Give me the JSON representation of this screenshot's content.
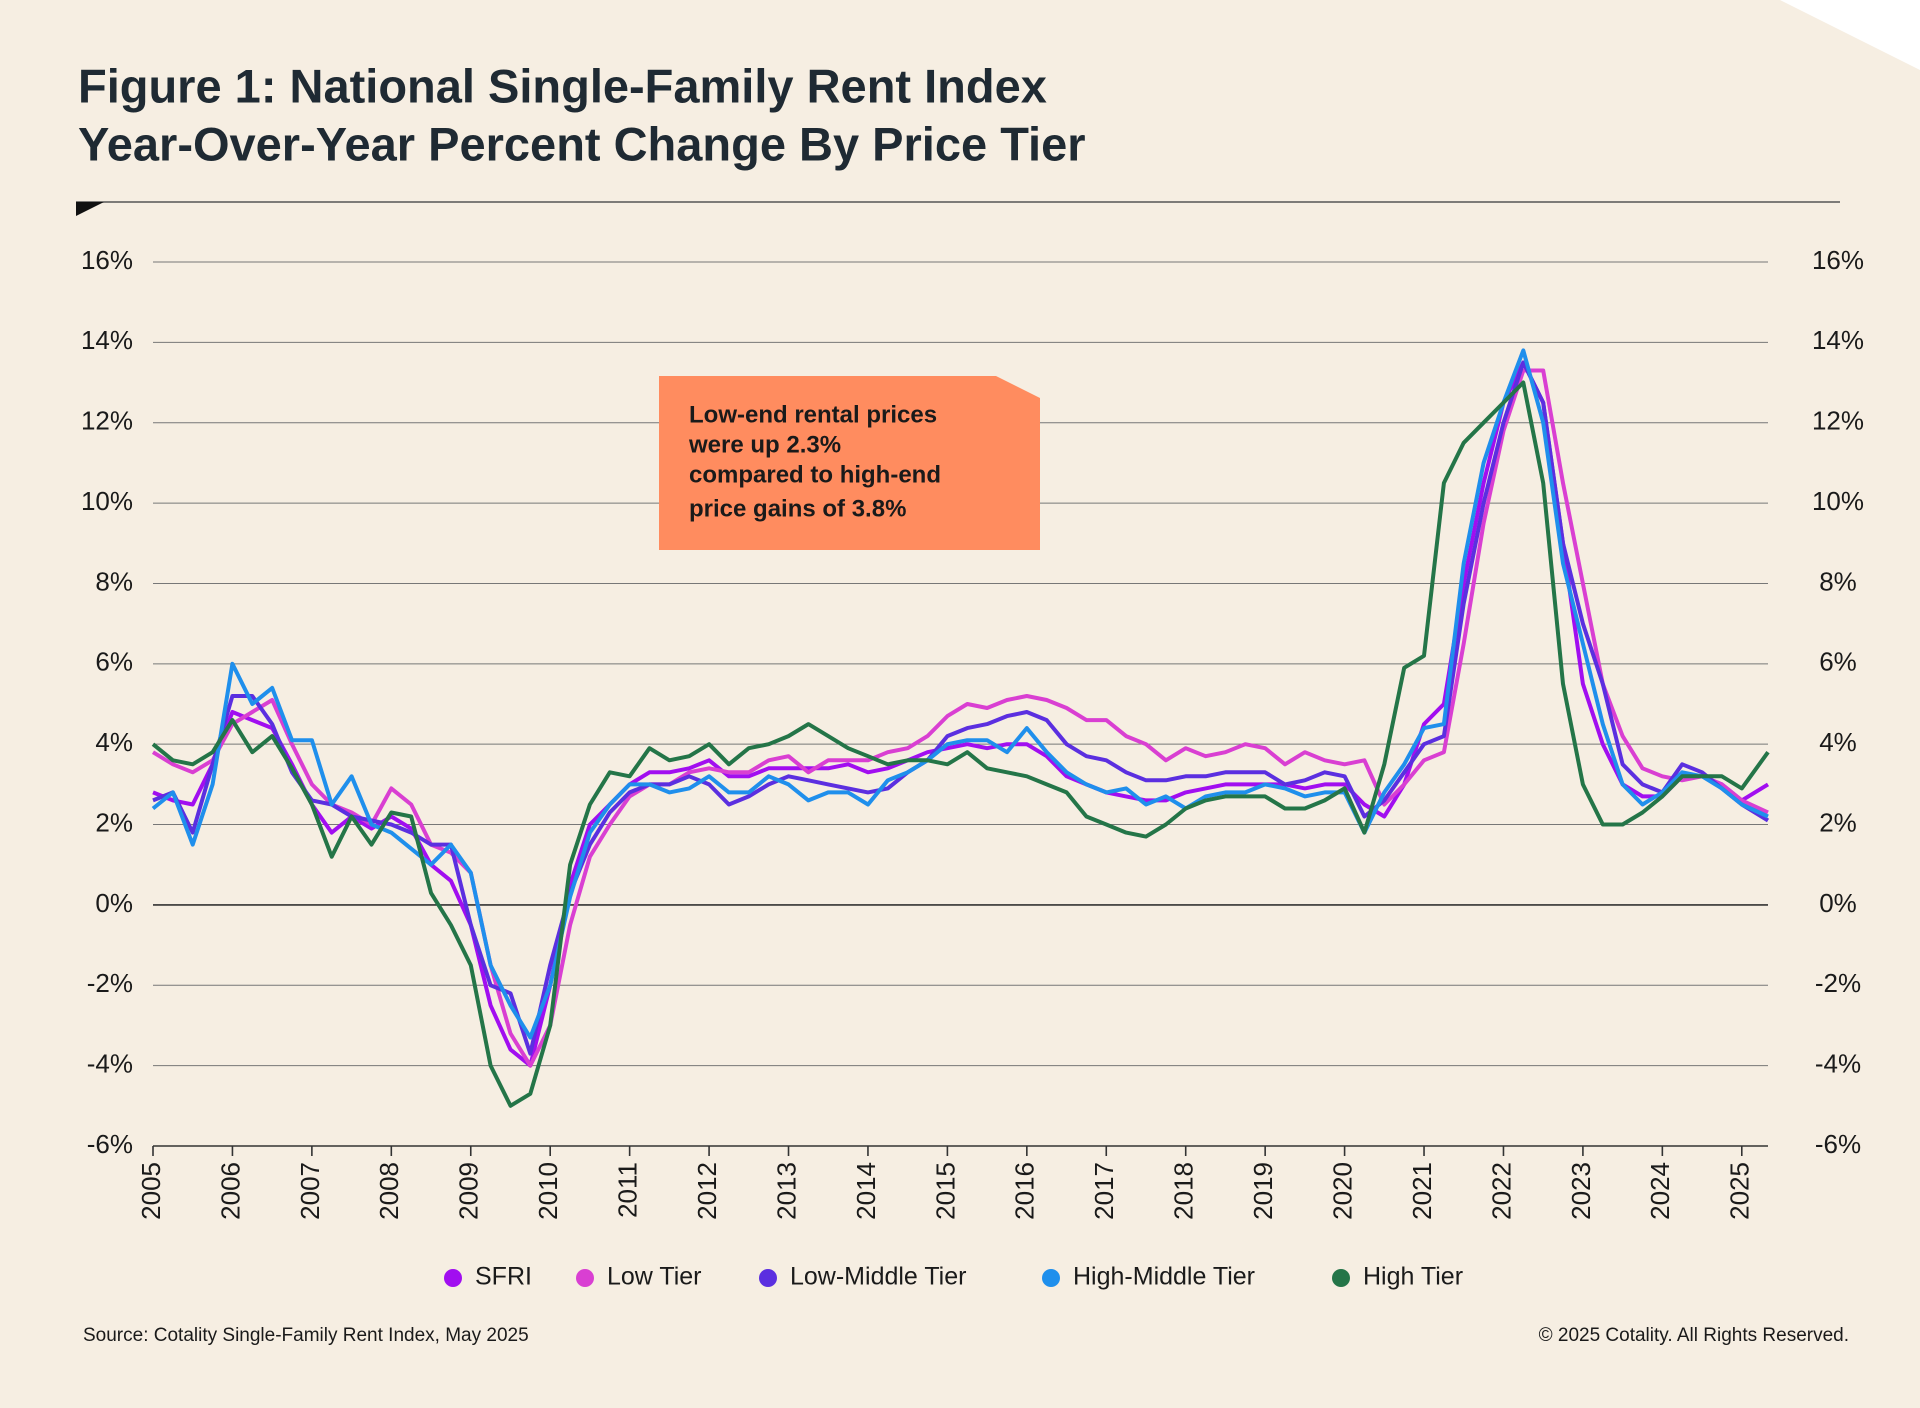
{
  "chart_data": {
    "type": "line",
    "title": [
      "Figure 1: National Single-Family Rent Index",
      "Year-Over-Year Percent Change By Price Tier"
    ],
    "annotation": [
      "Low-end rental prices",
      "were up 2.3%",
      "compared to high-end",
      "price gains of 3.8%"
    ],
    "source": "Source: Cotality Single-Family Rent Index, May 2025",
    "copyright": "© 2025 Cotality. All Rights Reserved.",
    "xlim": [
      2005,
      2025.33
    ],
    "xticks": [
      2005,
      2006,
      2007,
      2008,
      2009,
      2010,
      2011,
      2012,
      2013,
      2014,
      2015,
      2016,
      2017,
      2018,
      2019,
      2020,
      2021,
      2022,
      2023,
      2024,
      2025
    ],
    "ylim": [
      -6,
      16
    ],
    "yticks": [
      {
        "value": -6,
        "label": "-6%"
      },
      {
        "value": -4,
        "label": "-4%"
      },
      {
        "value": -2,
        "label": "-2%"
      },
      {
        "value": 0,
        "label": "0%"
      },
      {
        "value": 2,
        "label": "2%"
      },
      {
        "value": 4,
        "label": "4%"
      },
      {
        "value": 6,
        "label": "6%"
      },
      {
        "value": 8,
        "label": "8%"
      },
      {
        "value": 10,
        "label": "10%"
      },
      {
        "value": 12,
        "label": "12%"
      },
      {
        "value": 14,
        "label": "14%"
      },
      {
        "value": 16,
        "label": "16%"
      }
    ],
    "grid": true,
    "x": [
      2005,
      2005.25,
      2005.5,
      2005.75,
      2006,
      2006.25,
      2006.5,
      2006.75,
      2007,
      2007.25,
      2007.5,
      2007.75,
      2008,
      2008.25,
      2008.5,
      2008.75,
      2009,
      2009.25,
      2009.5,
      2009.75,
      2010,
      2010.25,
      2010.5,
      2010.75,
      2011,
      2011.25,
      2011.5,
      2011.75,
      2012,
      2012.25,
      2012.5,
      2012.75,
      2013,
      2013.25,
      2013.5,
      2013.75,
      2014,
      2014.25,
      2014.5,
      2014.75,
      2015,
      2015.25,
      2015.5,
      2015.75,
      2016,
      2016.25,
      2016.5,
      2016.75,
      2017,
      2017.25,
      2017.5,
      2017.75,
      2018,
      2018.25,
      2018.5,
      2018.75,
      2019,
      2019.25,
      2019.5,
      2019.75,
      2020,
      2020.25,
      2020.5,
      2020.75,
      2021,
      2021.25,
      2021.5,
      2021.75,
      2022,
      2022.25,
      2022.5,
      2022.75,
      2023,
      2023.25,
      2023.5,
      2023.75,
      2024,
      2024.25,
      2024.5,
      2024.75,
      2025,
      2025.33
    ],
    "series": [
      {
        "name": "SFRI",
        "color": "#a10ef0",
        "values": [
          2.8,
          2.6,
          2.5,
          3.5,
          4.8,
          4.6,
          4.4,
          3.5,
          2.5,
          1.8,
          2.2,
          1.9,
          2.2,
          1.9,
          1.0,
          0.6,
          -0.5,
          -2.5,
          -3.6,
          -4.0,
          -2.0,
          0.5,
          2.0,
          2.5,
          3.0,
          3.3,
          3.3,
          3.4,
          3.6,
          3.2,
          3.2,
          3.4,
          3.4,
          3.4,
          3.4,
          3.5,
          3.3,
          3.4,
          3.6,
          3.8,
          3.9,
          4.0,
          3.9,
          4.0,
          4.0,
          3.7,
          3.2,
          3.0,
          2.8,
          2.7,
          2.6,
          2.6,
          2.8,
          2.9,
          3.0,
          3.0,
          3.0,
          3.0,
          2.9,
          3.0,
          3.0,
          2.5,
          2.2,
          3.0,
          4.5,
          5.0,
          8.0,
          10.5,
          12.5,
          13.5,
          12.5,
          9.0,
          5.5,
          4.0,
          3.0,
          2.7,
          2.7,
          3.2,
          3.2,
          3.0,
          2.6,
          3.0
        ]
      },
      {
        "name": "Low Tier",
        "color": "#d93fd2",
        "values": [
          3.8,
          3.5,
          3.3,
          3.6,
          4.5,
          4.8,
          5.1,
          4.0,
          3.0,
          2.5,
          2.3,
          2.0,
          2.9,
          2.5,
          1.5,
          1.3,
          0.8,
          -1.5,
          -3.2,
          -4.0,
          -3.0,
          -0.5,
          1.2,
          2.0,
          2.7,
          3.0,
          3.0,
          3.3,
          3.4,
          3.3,
          3.3,
          3.6,
          3.7,
          3.3,
          3.6,
          3.6,
          3.6,
          3.8,
          3.9,
          4.2,
          4.7,
          5.0,
          4.9,
          5.1,
          5.2,
          5.1,
          4.9,
          4.6,
          4.6,
          4.2,
          4.0,
          3.6,
          3.9,
          3.7,
          3.8,
          4.0,
          3.9,
          3.5,
          3.8,
          3.6,
          3.5,
          3.6,
          2.5,
          3.0,
          3.6,
          3.8,
          6.5,
          9.5,
          11.8,
          13.3,
          13.3,
          10.5,
          8.0,
          5.5,
          4.2,
          3.4,
          3.2,
          3.1,
          3.2,
          3.0,
          2.6,
          2.3
        ]
      },
      {
        "name": "Low-Middle Tier",
        "color": "#5b2fe0",
        "values": [
          2.6,
          2.8,
          1.8,
          3.5,
          5.2,
          5.2,
          4.5,
          3.3,
          2.6,
          2.5,
          2.2,
          2.1,
          2.0,
          1.8,
          1.5,
          1.5,
          -0.5,
          -2.0,
          -2.2,
          -3.7,
          -1.5,
          0.3,
          1.5,
          2.3,
          2.8,
          3.0,
          3.0,
          3.2,
          3.0,
          2.5,
          2.7,
          3.0,
          3.2,
          3.1,
          3.0,
          2.9,
          2.8,
          2.9,
          3.3,
          3.6,
          4.2,
          4.4,
          4.5,
          4.7,
          4.8,
          4.6,
          4.0,
          3.7,
          3.6,
          3.3,
          3.1,
          3.1,
          3.2,
          3.2,
          3.3,
          3.3,
          3.3,
          3.0,
          3.1,
          3.3,
          3.2,
          2.2,
          2.6,
          3.3,
          4.0,
          4.2,
          7.5,
          10.0,
          12.0,
          13.5,
          12.5,
          9.0,
          7.0,
          5.5,
          3.5,
          3.0,
          2.8,
          3.5,
          3.3,
          2.9,
          2.5,
          2.1
        ]
      },
      {
        "name": "High-Middle Tier",
        "color": "#1f8fec",
        "values": [
          2.4,
          2.8,
          1.5,
          3.0,
          6.0,
          5.0,
          5.4,
          4.1,
          4.1,
          2.5,
          3.2,
          2.0,
          1.8,
          1.4,
          1.0,
          1.5,
          0.8,
          -1.5,
          -2.5,
          -3.3,
          -2.0,
          0.2,
          1.8,
          2.5,
          3.0,
          3.0,
          2.8,
          2.9,
          3.2,
          2.8,
          2.8,
          3.2,
          3.0,
          2.6,
          2.8,
          2.8,
          2.5,
          3.1,
          3.3,
          3.6,
          4.0,
          4.1,
          4.1,
          3.8,
          4.4,
          3.8,
          3.3,
          3.0,
          2.8,
          2.9,
          2.5,
          2.7,
          2.4,
          2.7,
          2.8,
          2.8,
          3.0,
          2.9,
          2.7,
          2.8,
          2.8,
          1.8,
          2.8,
          3.5,
          4.4,
          4.5,
          8.5,
          11.0,
          12.5,
          13.8,
          12.0,
          8.5,
          6.5,
          4.5,
          3.0,
          2.5,
          2.8,
          3.3,
          3.2,
          2.9,
          2.5,
          2.2
        ]
      },
      {
        "name": "High Tier",
        "color": "#247548",
        "values": [
          4.0,
          3.6,
          3.5,
          3.8,
          4.6,
          3.8,
          4.2,
          3.4,
          2.5,
          1.2,
          2.2,
          1.5,
          2.3,
          2.2,
          0.3,
          -0.5,
          -1.5,
          -4.0,
          -5.0,
          -4.7,
          -3.0,
          1.0,
          2.5,
          3.3,
          3.2,
          3.9,
          3.6,
          3.7,
          4.0,
          3.5,
          3.9,
          4.0,
          4.2,
          4.5,
          4.2,
          3.9,
          3.7,
          3.5,
          3.6,
          3.6,
          3.5,
          3.8,
          3.4,
          3.3,
          3.2,
          3.0,
          2.8,
          2.2,
          2.0,
          1.8,
          1.7,
          2.0,
          2.4,
          2.6,
          2.7,
          2.7,
          2.7,
          2.4,
          2.4,
          2.6,
          2.9,
          1.8,
          3.5,
          5.9,
          6.2,
          10.5,
          11.5,
          12.0,
          12.5,
          13.0,
          10.5,
          5.5,
          3.0,
          2.0,
          2.0,
          2.3,
          2.7,
          3.2,
          3.2,
          3.2,
          2.9,
          3.8
        ]
      }
    ]
  }
}
